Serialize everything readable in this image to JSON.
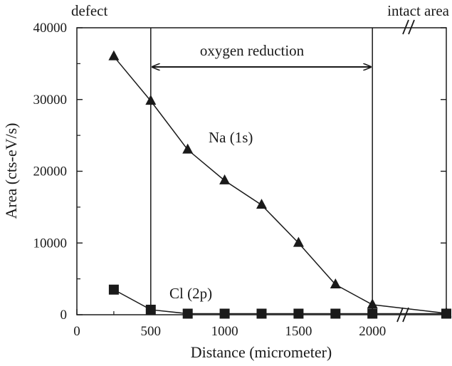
{
  "chart_data": {
    "type": "line",
    "title": "",
    "xlabel": "Distance (micrometer)",
    "ylabel": "Area (cts-eV/s)",
    "xlim": [
      0,
      2500
    ],
    "ylim": [
      0,
      40000
    ],
    "x_ticks": [
      "0",
      "500",
      "1000",
      "1500",
      "2000"
    ],
    "y_ticks": [
      "0",
      "10000",
      "20000",
      "30000",
      "40000"
    ],
    "axis_break": true,
    "grid": false,
    "series": [
      {
        "name": "Na (1s)",
        "marker": "triangle",
        "x": [
          250,
          500,
          750,
          1000,
          1250,
          1500,
          1750,
          2000,
          2500
        ],
        "y": [
          36000,
          29800,
          23000,
          18700,
          15300,
          10000,
          4200,
          1400,
          200
        ]
      },
      {
        "name": "Cl (2p)",
        "marker": "square",
        "x": [
          250,
          500,
          750,
          1000,
          1250,
          1500,
          1750,
          2000,
          2500
        ],
        "y": [
          3500,
          700,
          150,
          150,
          150,
          150,
          150,
          150,
          150
        ]
      }
    ],
    "annotations": {
      "defect": "defect",
      "intact": "intact area",
      "region": "oxygen reduction",
      "break_mark": "//"
    },
    "region_bounds": [
      500,
      2000
    ],
    "colors": {
      "ink": "#1a1a1a",
      "background": "#ffffff"
    }
  }
}
